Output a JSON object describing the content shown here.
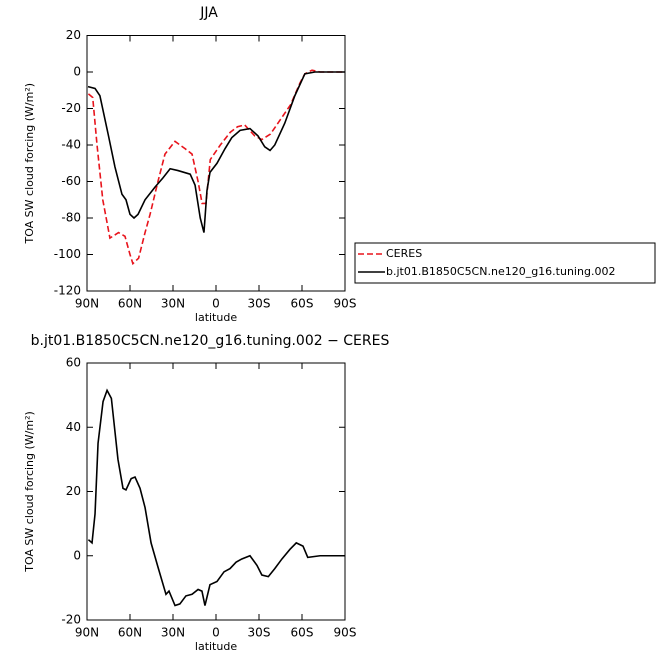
{
  "chart_data": [
    {
      "type": "line",
      "title": "JJA",
      "x_label": "latitude",
      "y_label": "TOA SW cloud forcing (W/m²)",
      "xlim": [
        90,
        -90
      ],
      "xticks": [
        {
          "value": 90,
          "label": "90N"
        },
        {
          "value": 60,
          "label": "60N"
        },
        {
          "value": 30,
          "label": "30N"
        },
        0,
        {
          "value": -30,
          "label": "30S"
        },
        {
          "value": -60,
          "label": "60S"
        },
        {
          "value": -90,
          "label": "90S"
        }
      ],
      "ylim": [
        -120,
        20
      ],
      "yticks": [
        -120,
        -100,
        -80,
        -60,
        -40,
        -20,
        0,
        20
      ],
      "legend": "right",
      "series": [
        {
          "name": "CERES",
          "color": "#e8141c",
          "dash": true,
          "x": [
            89,
            86,
            83,
            79,
            74,
            68,
            63.5,
            60,
            58,
            54,
            49.5,
            46,
            40.5,
            35.6,
            28.6,
            21.6,
            16.7,
            12.5,
            9.7,
            7,
            4,
            -3,
            -10,
            -15,
            -20,
            -27,
            -32,
            -38,
            -45,
            -52,
            -58.6,
            -62,
            -67,
            -72.6,
            -90
          ],
          "values": [
            -12,
            -14,
            -40,
            -70,
            -91,
            -88,
            -90,
            -100,
            -105,
            -102,
            -88,
            -78,
            -60,
            -45,
            -38,
            -42,
            -45,
            -60,
            -72,
            -72,
            -48,
            -40,
            -33,
            -30,
            -29,
            -35,
            -37,
            -34,
            -26,
            -18,
            -6,
            -1,
            1,
            0,
            0
          ]
        },
        {
          "name": "b.jt01.B1850C5CN.ne120_g16.tuning.002",
          "color": "#000000",
          "dash": false,
          "x": [
            89.3,
            84.4,
            81,
            75,
            70.5,
            65.6,
            62.8,
            60,
            57.2,
            54.4,
            49.5,
            42.5,
            37,
            32,
            26.5,
            18,
            14.6,
            11,
            8.4,
            6.3,
            4.2,
            -0.7,
            -6.3,
            -11,
            -16.8,
            -23.7,
            -29.3,
            -34,
            -37.7,
            -41,
            -48,
            -55,
            -62,
            -69,
            -90
          ],
          "values": [
            -8,
            -9,
            -13,
            -35,
            -52,
            -67,
            -70,
            -78,
            -80,
            -78,
            -70,
            -63,
            -58,
            -53,
            -54,
            -56,
            -62,
            -80,
            -88,
            -65,
            -55,
            -50,
            -42,
            -36,
            -32,
            -31,
            -35,
            -41,
            -43,
            -40,
            -28,
            -13,
            -1,
            0,
            0
          ]
        }
      ]
    },
    {
      "type": "line",
      "title": "b.jt01.B1850C5CN.ne120_g16.tuning.002 − CERES",
      "x_label": "latitude",
      "y_label": "TOA SW cloud forcing (W/m²)",
      "xlim": [
        90,
        -90
      ],
      "xticks": [
        {
          "value": 90,
          "label": "90N"
        },
        {
          "value": 60,
          "label": "60N"
        },
        {
          "value": 30,
          "label": "30N"
        },
        0,
        {
          "value": -30,
          "label": "30S"
        },
        {
          "value": -60,
          "label": "60S"
        },
        {
          "value": -90,
          "label": "90S"
        }
      ],
      "ylim": [
        -20,
        60
      ],
      "yticks": [
        -20,
        0,
        20,
        40,
        60
      ],
      "series": [
        {
          "color": "#000000",
          "dash": false,
          "x": [
            89,
            86.5,
            84.4,
            82.3,
            78.8,
            76,
            73,
            68.4,
            64.9,
            62.8,
            59.2,
            56.5,
            53,
            49.5,
            45.3,
            40.5,
            34.9,
            32.8,
            28.6,
            25.2,
            21,
            16.7,
            12.5,
            9.8,
            7.7,
            4.2,
            -0.7,
            -5.6,
            -9.8,
            -14,
            -18,
            -23.7,
            -28.6,
            -32,
            -36.5,
            -41,
            -46,
            -51.6,
            -56,
            -60.7,
            -64,
            -72.6,
            -90
          ],
          "values": [
            5,
            4,
            13,
            35,
            48,
            51.5,
            49,
            30,
            21,
            20.5,
            24,
            24.5,
            21,
            15,
            4,
            -3.5,
            -12,
            -11,
            -15.5,
            -15,
            -12.5,
            -12,
            -10.5,
            -11,
            -15.5,
            -9,
            -8,
            -5,
            -4,
            -2,
            -1,
            0,
            -3,
            -6,
            -6.5,
            -4,
            -1,
            2,
            4,
            3,
            -0.5,
            0,
            0
          ]
        }
      ]
    }
  ]
}
